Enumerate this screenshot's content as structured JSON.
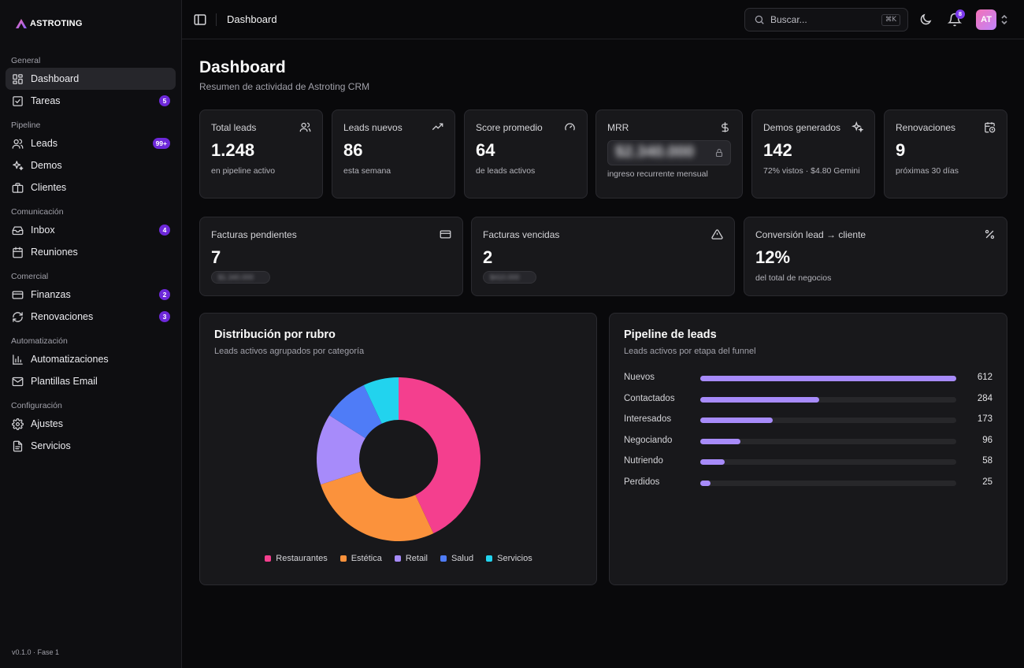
{
  "brand": {
    "name": "ASTROTING"
  },
  "sidebar": {
    "groups": [
      {
        "label": "General",
        "items": [
          {
            "label": "Dashboard",
            "icon": "grid-icon",
            "active": true
          },
          {
            "label": "Tareas",
            "icon": "check-square-icon",
            "badge": "5"
          }
        ]
      },
      {
        "label": "Pipeline",
        "items": [
          {
            "label": "Leads",
            "icon": "users-icon",
            "badge": "99+"
          },
          {
            "label": "Demos",
            "icon": "sparkles-icon"
          },
          {
            "label": "Clientes",
            "icon": "briefcase-icon"
          }
        ]
      },
      {
        "label": "Comunicación",
        "items": [
          {
            "label": "Inbox",
            "icon": "inbox-icon",
            "badge": "4"
          },
          {
            "label": "Reuniones",
            "icon": "calendar-icon"
          }
        ]
      },
      {
        "label": "Comercial",
        "items": [
          {
            "label": "Finanzas",
            "icon": "credit-card-icon",
            "badge": "2"
          },
          {
            "label": "Renovaciones",
            "icon": "refresh-icon",
            "badge": "3"
          }
        ]
      },
      {
        "label": "Automatización",
        "items": [
          {
            "label": "Automatizaciones",
            "icon": "bar-chart-icon"
          },
          {
            "label": "Plantillas Email",
            "icon": "mail-icon"
          }
        ]
      },
      {
        "label": "Configuración",
        "items": [
          {
            "label": "Ajustes",
            "icon": "gear-icon"
          },
          {
            "label": "Servicios",
            "icon": "file-icon"
          }
        ]
      }
    ],
    "version": "v0.1.0 · Fase 1"
  },
  "topbar": {
    "title": "Dashboard",
    "search_placeholder": "Buscar...",
    "search_shortcut": "⌘K",
    "notifications_count": "8",
    "avatar_initials": "AT"
  },
  "page": {
    "title": "Dashboard",
    "subtitle": "Resumen de actividad de Astroting CRM"
  },
  "stats_row1": [
    {
      "label": "Total leads",
      "value": "1.248",
      "desc": "en pipeline activo",
      "icon": "users-icon"
    },
    {
      "label": "Leads nuevos",
      "value": "86",
      "desc": "esta semana",
      "icon": "trending-up-icon"
    },
    {
      "label": "Score promedio",
      "value": "64",
      "desc": "de leads activos",
      "icon": "gauge-icon"
    },
    {
      "label": "MRR",
      "value": "$2.340.000",
      "desc": "ingreso recurrente mensual",
      "icon": "dollar-icon"
    },
    {
      "label": "Demos generados",
      "value": "142",
      "desc": "72% vistos · $4.80 Gemini",
      "icon": "sparkles-icon"
    },
    {
      "label": "Renovaciones",
      "value": "9",
      "desc": "próximas 30 días",
      "icon": "calendar-clock-icon"
    }
  ],
  "stats_row2": [
    {
      "label": "Facturas pendientes",
      "value": "7",
      "desc": "$1.340.000",
      "icon": "credit-card-icon"
    },
    {
      "label": "Facturas vencidas",
      "value": "2",
      "desc": "$410.000",
      "icon": "alert-triangle-icon"
    },
    {
      "label": "Conversión lead → cliente",
      "value": "12%",
      "desc": "del total de negocios",
      "icon": "percent-icon"
    }
  ],
  "donut": {
    "title": "Distribución por rubro",
    "subtitle": "Leads activos agrupados por categoría",
    "chart_data": {
      "type": "pie",
      "categories": [
        "Restaurantes",
        "Estética",
        "Retail",
        "Salud",
        "Servicios"
      ],
      "values": [
        43,
        27,
        14,
        9,
        7
      ],
      "colors": [
        "#f43f8e",
        "#fb923c",
        "#a78bfa",
        "#4f7cf7",
        "#22d3ee"
      ]
    }
  },
  "funnel": {
    "title": "Pipeline de leads",
    "subtitle": "Leads activos por etapa del funnel",
    "chart_data": {
      "type": "bar",
      "categories": [
        "Nuevos",
        "Contactados",
        "Interesados",
        "Negociando",
        "Nutriendo",
        "Perdidos"
      ],
      "values": [
        612,
        284,
        173,
        96,
        58,
        25
      ],
      "xlim": [
        0,
        612
      ]
    }
  }
}
